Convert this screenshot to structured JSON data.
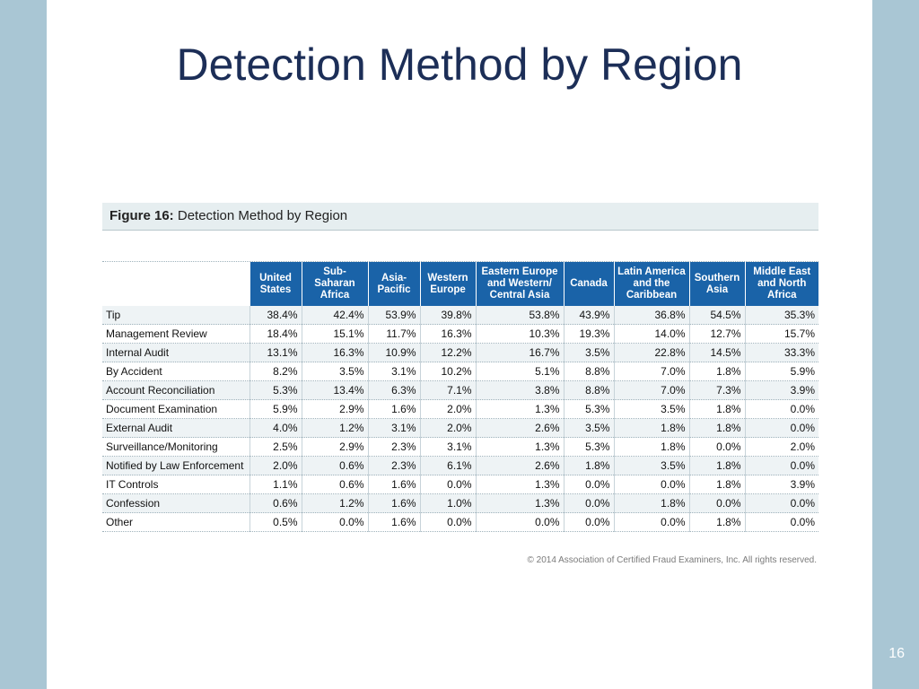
{
  "slide": {
    "title": "Detection Method by Region",
    "page_number": "16"
  },
  "figure": {
    "caption_label": "Figure 16:",
    "caption_text": " Detection Method by Region",
    "copyright": "© 2014 Association of Certified Fraud Examiners, Inc. All rights reserved."
  },
  "table": {
    "headers": [
      "United States",
      "Sub-Saharan Africa",
      "Asia-Pacific",
      "Western Europe",
      "Eastern Europe and Western/ Central Asia",
      "Canada",
      "Latin America and the Caribbean",
      "Southern Asia",
      "Middle East and North Africa"
    ],
    "rows": [
      {
        "label": "Tip",
        "values": [
          "38.4%",
          "42.4%",
          "53.9%",
          "39.8%",
          "53.8%",
          "43.9%",
          "36.8%",
          "54.5%",
          "35.3%"
        ]
      },
      {
        "label": "Management Review",
        "values": [
          "18.4%",
          "15.1%",
          "11.7%",
          "16.3%",
          "10.3%",
          "19.3%",
          "14.0%",
          "12.7%",
          "15.7%"
        ]
      },
      {
        "label": "Internal Audit",
        "values": [
          "13.1%",
          "16.3%",
          "10.9%",
          "12.2%",
          "16.7%",
          "3.5%",
          "22.8%",
          "14.5%",
          "33.3%"
        ]
      },
      {
        "label": "By Accident",
        "values": [
          "8.2%",
          "3.5%",
          "3.1%",
          "10.2%",
          "5.1%",
          "8.8%",
          "7.0%",
          "1.8%",
          "5.9%"
        ]
      },
      {
        "label": "Account Reconciliation",
        "values": [
          "5.3%",
          "13.4%",
          "6.3%",
          "7.1%",
          "3.8%",
          "8.8%",
          "7.0%",
          "7.3%",
          "3.9%"
        ]
      },
      {
        "label": "Document Examination",
        "values": [
          "5.9%",
          "2.9%",
          "1.6%",
          "2.0%",
          "1.3%",
          "5.3%",
          "3.5%",
          "1.8%",
          "0.0%"
        ]
      },
      {
        "label": "External Audit",
        "values": [
          "4.0%",
          "1.2%",
          "3.1%",
          "2.0%",
          "2.6%",
          "3.5%",
          "1.8%",
          "1.8%",
          "0.0%"
        ]
      },
      {
        "label": "Surveillance/Monitoring",
        "values": [
          "2.5%",
          "2.9%",
          "2.3%",
          "3.1%",
          "1.3%",
          "5.3%",
          "1.8%",
          "0.0%",
          "2.0%"
        ]
      },
      {
        "label": "Notified by Law Enforcement",
        "values": [
          "2.0%",
          "0.6%",
          "2.3%",
          "6.1%",
          "2.6%",
          "1.8%",
          "3.5%",
          "1.8%",
          "0.0%"
        ]
      },
      {
        "label": "IT Controls",
        "values": [
          "1.1%",
          "0.6%",
          "1.6%",
          "0.0%",
          "1.3%",
          "0.0%",
          "0.0%",
          "1.8%",
          "3.9%"
        ]
      },
      {
        "label": "Confession",
        "values": [
          "0.6%",
          "1.2%",
          "1.6%",
          "1.0%",
          "1.3%",
          "0.0%",
          "1.8%",
          "0.0%",
          "0.0%"
        ]
      },
      {
        "label": "Other",
        "values": [
          "0.5%",
          "0.0%",
          "1.6%",
          "0.0%",
          "0.0%",
          "0.0%",
          "0.0%",
          "1.8%",
          "0.0%"
        ]
      }
    ]
  },
  "colors": {
    "header_bg": "#1a63a8",
    "title_color": "#1c2e57",
    "side_band": "#a9c6d4"
  }
}
